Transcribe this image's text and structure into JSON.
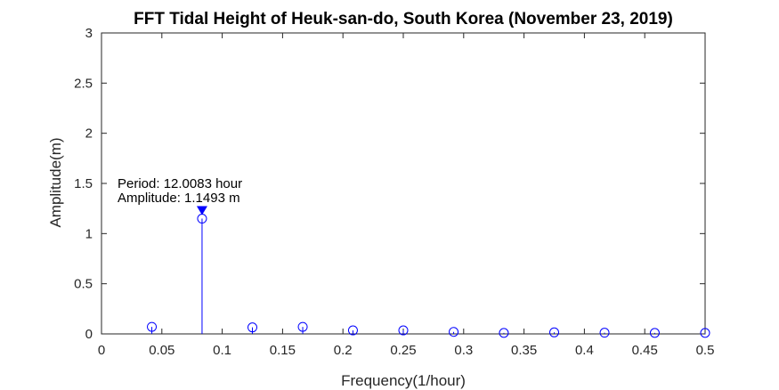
{
  "chart_data": {
    "type": "stem",
    "title": "FFT Tidal Height of Heuk-san-do, South Korea (November 23, 2019)",
    "xlabel": "Frequency(1/hour)",
    "ylabel": "Amplitude(m)",
    "xlim": [
      0,
      0.5
    ],
    "ylim": [
      0,
      3
    ],
    "xticks": [
      0,
      0.05,
      0.1,
      0.15,
      0.2,
      0.25,
      0.3,
      0.35,
      0.4,
      0.45,
      0.5
    ],
    "xtick_labels": [
      "0",
      "0.05",
      "0.1",
      "0.15",
      "0.2",
      "0.25",
      "0.3",
      "0.35",
      "0.4",
      "0.45",
      "0.5"
    ],
    "yticks": [
      0,
      0.5,
      1,
      1.5,
      2,
      2.5,
      3
    ],
    "ytick_labels": [
      "0",
      "0.5",
      "1",
      "1.5",
      "2",
      "2.5",
      "3"
    ],
    "grid": false,
    "color": "#0000ff",
    "points": [
      {
        "x": 0.0417,
        "y": 0.07
      },
      {
        "x": 0.0833,
        "y": 1.1493
      },
      {
        "x": 0.125,
        "y": 0.065
      },
      {
        "x": 0.1667,
        "y": 0.07
      },
      {
        "x": 0.2083,
        "y": 0.035
      },
      {
        "x": 0.25,
        "y": 0.035
      },
      {
        "x": 0.2917,
        "y": 0.02
      },
      {
        "x": 0.3333,
        "y": 0.01
      },
      {
        "x": 0.375,
        "y": 0.015
      },
      {
        "x": 0.4167,
        "y": 0.012
      },
      {
        "x": 0.4583,
        "y": 0.01
      },
      {
        "x": 0.5,
        "y": 0.01
      }
    ],
    "annotation": {
      "x": 0.0833,
      "y": 1.1493,
      "line1": "Period: 12.0083 hour",
      "line2": "Amplitude: 1.1493 m"
    }
  }
}
